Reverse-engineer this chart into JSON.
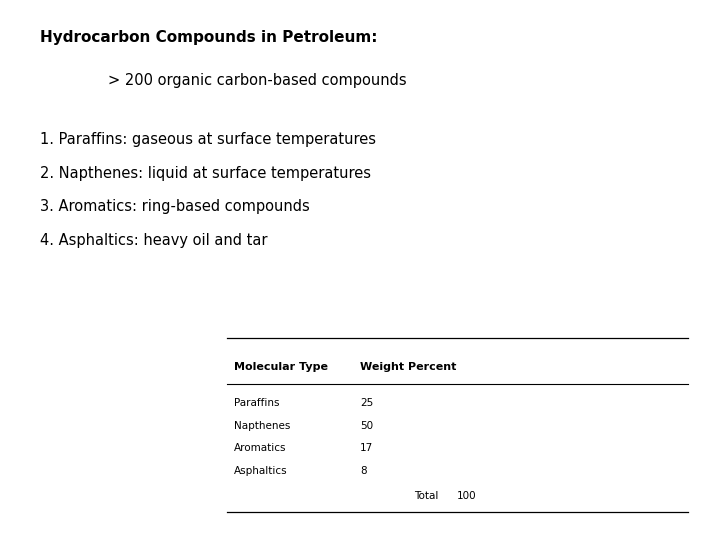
{
  "bg_color": "#ffffff",
  "title": "Hydrocarbon Compounds in Petroleum:",
  "subtitle": "> 200 organic carbon-based compounds",
  "list_items": [
    "1. Paraffins: gaseous at surface temperatures",
    "2. Napthenes: liquid at surface temperatures",
    "3. Aromatics: ring-based compounds",
    "4. Asphaltics: heavy oil and tar"
  ],
  "table_col1_header": "Molecular Type",
  "table_col2_header": "Weight Percent",
  "table_rows": [
    [
      "Paraffins",
      "25"
    ],
    [
      "Napthenes",
      "50"
    ],
    [
      "Aromatics",
      "17"
    ],
    [
      "Asphaltics",
      "8"
    ]
  ],
  "table_total_label": "Total",
  "table_total_value": "100",
  "title_fontsize": 11,
  "subtitle_fontsize": 10.5,
  "list_fontsize": 10.5,
  "table_header_fontsize": 8,
  "table_body_fontsize": 7.5
}
